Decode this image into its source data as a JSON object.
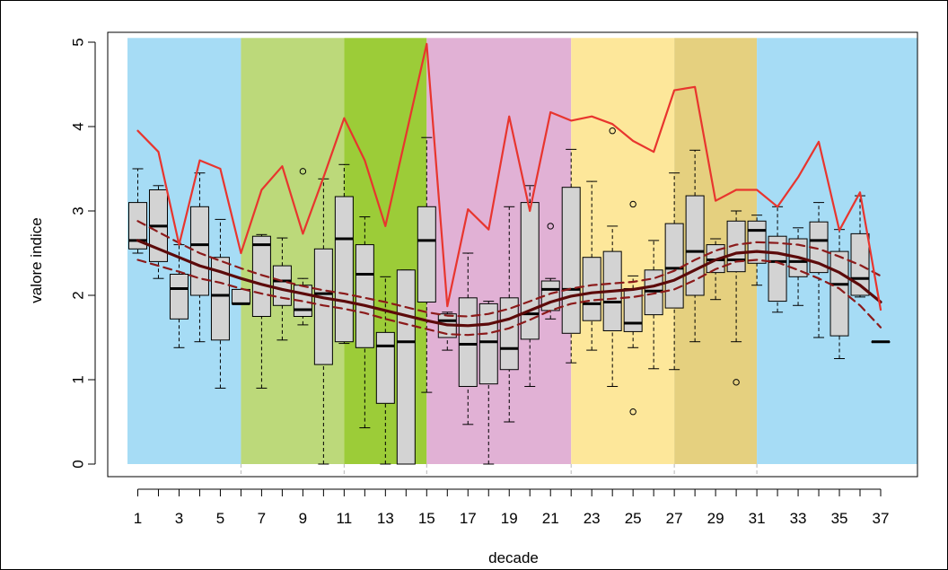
{
  "chart_data": {
    "type": "box",
    "xlabel": "decade",
    "ylabel": "valore indice",
    "xlim": [
      0,
      39
    ],
    "ylim": [
      0,
      5
    ],
    "x_ticks": [
      1,
      3,
      5,
      7,
      9,
      11,
      13,
      15,
      17,
      19,
      21,
      23,
      25,
      27,
      29,
      31,
      33,
      35,
      37
    ],
    "y_ticks": [
      0,
      1,
      2,
      3,
      4,
      5
    ],
    "grid": false,
    "background_bands": [
      {
        "from": 0.5,
        "to": 6,
        "color": "#a6dcf5"
      },
      {
        "from": 6,
        "to": 11,
        "color": "#bcd97a"
      },
      {
        "from": 11,
        "to": 15,
        "color": "#9ccc38"
      },
      {
        "from": 15,
        "to": 22,
        "color": "#e1b1d5"
      },
      {
        "from": 22,
        "to": 27,
        "color": "#fde79a"
      },
      {
        "from": 27,
        "to": 31,
        "color": "#e5d07f"
      },
      {
        "from": 31,
        "to": 39,
        "color": "#a6dcf5"
      }
    ],
    "band_dividers": [
      6,
      11,
      15,
      22,
      27,
      31
    ],
    "boxes": [
      {
        "x": 1,
        "min": 2.5,
        "q1": 2.55,
        "median": 2.65,
        "q3": 3.1,
        "max": 3.5
      },
      {
        "x": 2,
        "min": 2.2,
        "q1": 2.4,
        "median": 2.82,
        "q3": 3.25,
        "max": 3.3
      },
      {
        "x": 3,
        "min": 1.38,
        "q1": 1.72,
        "median": 2.08,
        "q3": 2.25,
        "max": 2.6
      },
      {
        "x": 4,
        "min": 1.45,
        "q1": 2.0,
        "median": 2.6,
        "q3": 3.05,
        "max": 3.45
      },
      {
        "x": 5,
        "min": 0.9,
        "q1": 1.47,
        "median": 2.0,
        "q3": 2.45,
        "max": 2.9
      },
      {
        "x": 6,
        "min": 1.9,
        "q1": 1.9,
        "median": 1.9,
        "q3": 2.07,
        "max": 2.07
      },
      {
        "x": 7,
        "min": 0.9,
        "q1": 1.75,
        "median": 2.6,
        "q3": 2.7,
        "max": 2.72
      },
      {
        "x": 8,
        "min": 1.47,
        "q1": 1.88,
        "median": 2.17,
        "q3": 2.35,
        "max": 2.68
      },
      {
        "x": 9,
        "min": 1.65,
        "q1": 1.75,
        "median": 1.83,
        "q3": 2.12,
        "max": 2.2,
        "outliers": [
          3.47
        ]
      },
      {
        "x": 10,
        "min": 0.0,
        "q1": 1.18,
        "median": 2.02,
        "q3": 2.55,
        "max": 3.38
      },
      {
        "x": 11,
        "min": 1.43,
        "q1": 1.45,
        "median": 2.67,
        "q3": 3.17,
        "max": 3.55
      },
      {
        "x": 12,
        "min": 0.43,
        "q1": 1.38,
        "median": 2.25,
        "q3": 2.6,
        "max": 2.93
      },
      {
        "x": 13,
        "min": 0.0,
        "q1": 0.72,
        "median": 1.4,
        "q3": 1.56,
        "max": 2.22
      },
      {
        "x": 14,
        "min": 0.0,
        "q1": 0.0,
        "median": 1.45,
        "q3": 2.3,
        "max": 2.3
      },
      {
        "x": 15,
        "min": 0.85,
        "q1": 1.92,
        "median": 2.65,
        "q3": 3.05,
        "max": 3.87
      },
      {
        "x": 16,
        "min": 1.35,
        "q1": 1.5,
        "median": 1.7,
        "q3": 1.78,
        "max": 1.8
      },
      {
        "x": 17,
        "min": 0.47,
        "q1": 0.92,
        "median": 1.42,
        "q3": 1.97,
        "max": 2.5
      },
      {
        "x": 18,
        "min": 0.0,
        "q1": 0.95,
        "median": 1.45,
        "q3": 1.9,
        "max": 1.93
      },
      {
        "x": 19,
        "min": 0.5,
        "q1": 1.12,
        "median": 1.37,
        "q3": 1.97,
        "max": 3.05
      },
      {
        "x": 20,
        "min": 0.92,
        "q1": 1.48,
        "median": 1.78,
        "q3": 3.1,
        "max": 3.3
      },
      {
        "x": 21,
        "min": 1.72,
        "q1": 1.82,
        "median": 2.07,
        "q3": 2.17,
        "max": 2.2,
        "outliers": [
          2.82
        ]
      },
      {
        "x": 22,
        "min": 1.2,
        "q1": 1.55,
        "median": 2.07,
        "q3": 3.28,
        "max": 3.73
      },
      {
        "x": 23,
        "min": 1.35,
        "q1": 1.7,
        "median": 1.9,
        "q3": 2.45,
        "max": 3.35
      },
      {
        "x": 24,
        "min": 0.92,
        "q1": 1.58,
        "median": 1.92,
        "q3": 2.52,
        "max": 2.82,
        "outliers": [
          3.95
        ]
      },
      {
        "x": 25,
        "min": 1.38,
        "q1": 1.57,
        "median": 1.67,
        "q3": 2.08,
        "max": 2.23,
        "outliers": [
          3.08,
          0.62
        ]
      },
      {
        "x": 26,
        "min": 1.13,
        "q1": 1.77,
        "median": 2.05,
        "q3": 2.3,
        "max": 2.65
      },
      {
        "x": 27,
        "min": 1.12,
        "q1": 1.85,
        "median": 2.32,
        "q3": 2.85,
        "max": 3.45
      },
      {
        "x": 28,
        "min": 1.45,
        "q1": 2.0,
        "median": 2.52,
        "q3": 3.18,
        "max": 3.72
      },
      {
        "x": 29,
        "min": 1.95,
        "q1": 2.27,
        "median": 2.42,
        "q3": 2.6,
        "max": 2.67
      },
      {
        "x": 30,
        "min": 1.45,
        "q1": 2.28,
        "median": 2.42,
        "q3": 2.88,
        "max": 3.0,
        "outliers": [
          0.97
        ]
      },
      {
        "x": 31,
        "min": 2.12,
        "q1": 2.38,
        "median": 2.77,
        "q3": 2.88,
        "max": 2.95
      },
      {
        "x": 32,
        "min": 1.8,
        "q1": 1.93,
        "median": 2.4,
        "q3": 2.7,
        "max": 3.05
      },
      {
        "x": 33,
        "min": 1.88,
        "q1": 2.22,
        "median": 2.4,
        "q3": 2.67,
        "max": 2.8
      },
      {
        "x": 34,
        "min": 1.5,
        "q1": 2.27,
        "median": 2.65,
        "q3": 2.87,
        "max": 3.1
      },
      {
        "x": 35,
        "min": 1.25,
        "q1": 1.52,
        "median": 2.13,
        "q3": 2.52,
        "max": 2.78
      },
      {
        "x": 36,
        "min": 1.98,
        "q1": 2.0,
        "median": 2.2,
        "q3": 2.73,
        "max": 3.18
      },
      {
        "x": 37,
        "min": 1.45,
        "q1": 1.45,
        "median": 1.45,
        "q3": 1.45,
        "max": 1.45
      }
    ],
    "series": [
      {
        "kind": "max-line",
        "color": "#e8352e",
        "x": [
          1,
          2,
          3,
          4,
          5,
          6,
          7,
          8,
          9,
          10,
          11,
          12,
          13,
          14,
          15,
          16,
          17,
          18,
          19,
          20,
          21,
          22,
          23,
          24,
          25,
          26,
          27,
          28,
          29,
          30,
          31,
          32,
          33,
          34,
          35,
          36,
          37
        ],
        "values": [
          3.95,
          3.7,
          2.6,
          3.6,
          3.5,
          2.5,
          3.25,
          3.53,
          2.73,
          3.4,
          4.1,
          3.6,
          2.82,
          3.9,
          4.98,
          1.87,
          3.02,
          2.78,
          4.12,
          3.0,
          4.17,
          4.07,
          4.12,
          4.03,
          3.83,
          3.7,
          4.43,
          4.47,
          3.12,
          3.25,
          3.25,
          3.05,
          3.4,
          3.82,
          2.77,
          3.22,
          1.83
        ]
      },
      {
        "kind": "smooth-fit",
        "color": "#5c0a0a",
        "x": [
          1,
          2,
          3,
          4,
          5,
          6,
          7,
          8,
          9,
          10,
          11,
          12,
          13,
          14,
          15,
          16,
          17,
          18,
          19,
          20,
          21,
          22,
          23,
          24,
          25,
          26,
          27,
          28,
          29,
          30,
          31,
          32,
          33,
          34,
          35,
          36,
          37
        ],
        "values": [
          2.65,
          2.55,
          2.45,
          2.35,
          2.28,
          2.2,
          2.13,
          2.07,
          2.02,
          1.97,
          1.93,
          1.88,
          1.82,
          1.76,
          1.7,
          1.65,
          1.64,
          1.66,
          1.72,
          1.82,
          1.92,
          1.99,
          2.03,
          2.05,
          2.07,
          2.11,
          2.18,
          2.3,
          2.42,
          2.5,
          2.52,
          2.5,
          2.45,
          2.38,
          2.27,
          2.12,
          1.92
        ]
      },
      {
        "kind": "confidence-upper",
        "color": "#8b1a1a",
        "x": [
          1,
          2,
          3,
          4,
          5,
          6,
          7,
          8,
          9,
          10,
          11,
          12,
          13,
          14,
          15,
          16,
          17,
          18,
          19,
          20,
          21,
          22,
          23,
          24,
          25,
          26,
          27,
          28,
          29,
          30,
          31,
          32,
          33,
          34,
          35,
          36,
          37
        ],
        "values": [
          2.88,
          2.75,
          2.62,
          2.5,
          2.41,
          2.32,
          2.24,
          2.17,
          2.11,
          2.06,
          2.02,
          1.97,
          1.92,
          1.86,
          1.8,
          1.76,
          1.75,
          1.78,
          1.84,
          1.93,
          2.02,
          2.08,
          2.12,
          2.14,
          2.16,
          2.2,
          2.29,
          2.42,
          2.53,
          2.6,
          2.63,
          2.62,
          2.6,
          2.55,
          2.46,
          2.36,
          2.23
        ]
      },
      {
        "kind": "confidence-lower",
        "color": "#8b1a1a",
        "x": [
          1,
          2,
          3,
          4,
          5,
          6,
          7,
          8,
          9,
          10,
          11,
          12,
          13,
          14,
          15,
          16,
          17,
          18,
          19,
          20,
          21,
          22,
          23,
          24,
          25,
          26,
          27,
          28,
          29,
          30,
          31,
          32,
          33,
          34,
          35,
          36,
          37
        ],
        "values": [
          2.42,
          2.35,
          2.28,
          2.2,
          2.15,
          2.08,
          2.02,
          1.97,
          1.93,
          1.88,
          1.84,
          1.79,
          1.72,
          1.66,
          1.6,
          1.54,
          1.53,
          1.55,
          1.61,
          1.71,
          1.82,
          1.9,
          1.94,
          1.96,
          1.98,
          2.02,
          2.07,
          2.18,
          2.31,
          2.4,
          2.42,
          2.39,
          2.3,
          2.2,
          2.08,
          1.88,
          1.62
        ]
      }
    ]
  }
}
